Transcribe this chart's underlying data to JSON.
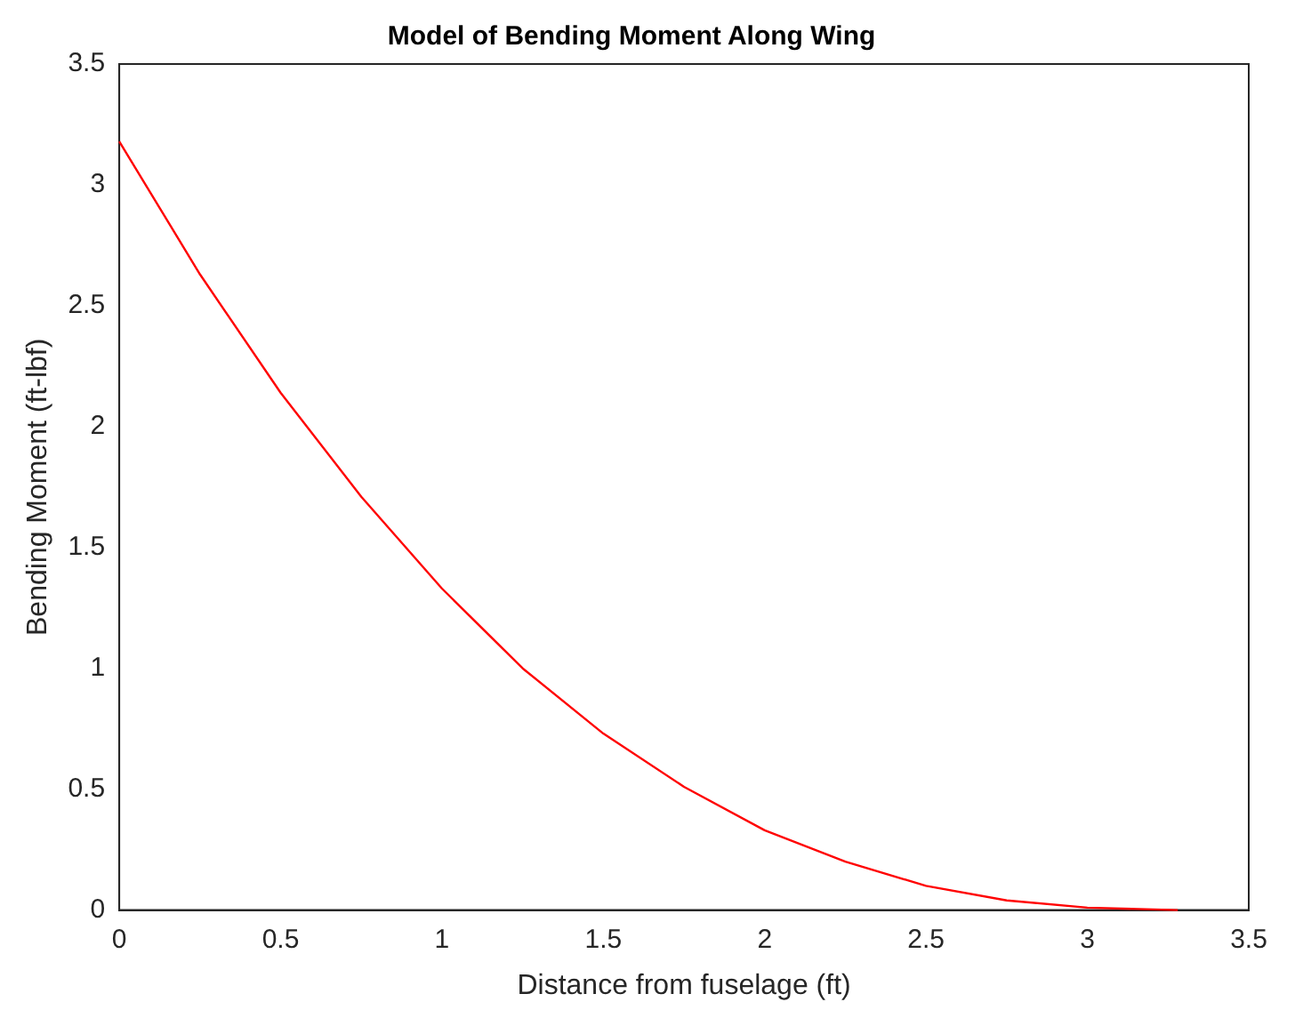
{
  "chart_data": {
    "type": "line",
    "title": "Model of Bending Moment Along Wing",
    "xlabel": "Distance from fuselage (ft)",
    "ylabel": "Bending Moment (ft-lbf)",
    "x": [
      0,
      0.25,
      0.5,
      0.75,
      1,
      1.25,
      1.5,
      1.75,
      2,
      2.25,
      2.5,
      2.75,
      3,
      3.28
    ],
    "series": [
      {
        "color": "#ff0000",
        "values": [
          3.18,
          2.63,
          2.14,
          1.71,
          1.33,
          1.0,
          0.73,
          0.51,
          0.33,
          0.2,
          0.1,
          0.04,
          0.01,
          0
        ]
      }
    ],
    "xlim": [
      0,
      3.5
    ],
    "xticks": [
      0,
      0.5,
      1,
      1.5,
      2,
      2.5,
      3,
      3.5
    ],
    "ylim": [
      0,
      3.5
    ],
    "yticks": [
      0,
      0.5,
      1,
      1.5,
      2,
      2.5,
      3,
      3.5
    ],
    "grid": false,
    "legend": false,
    "marker": "none",
    "line_style": "solid"
  }
}
